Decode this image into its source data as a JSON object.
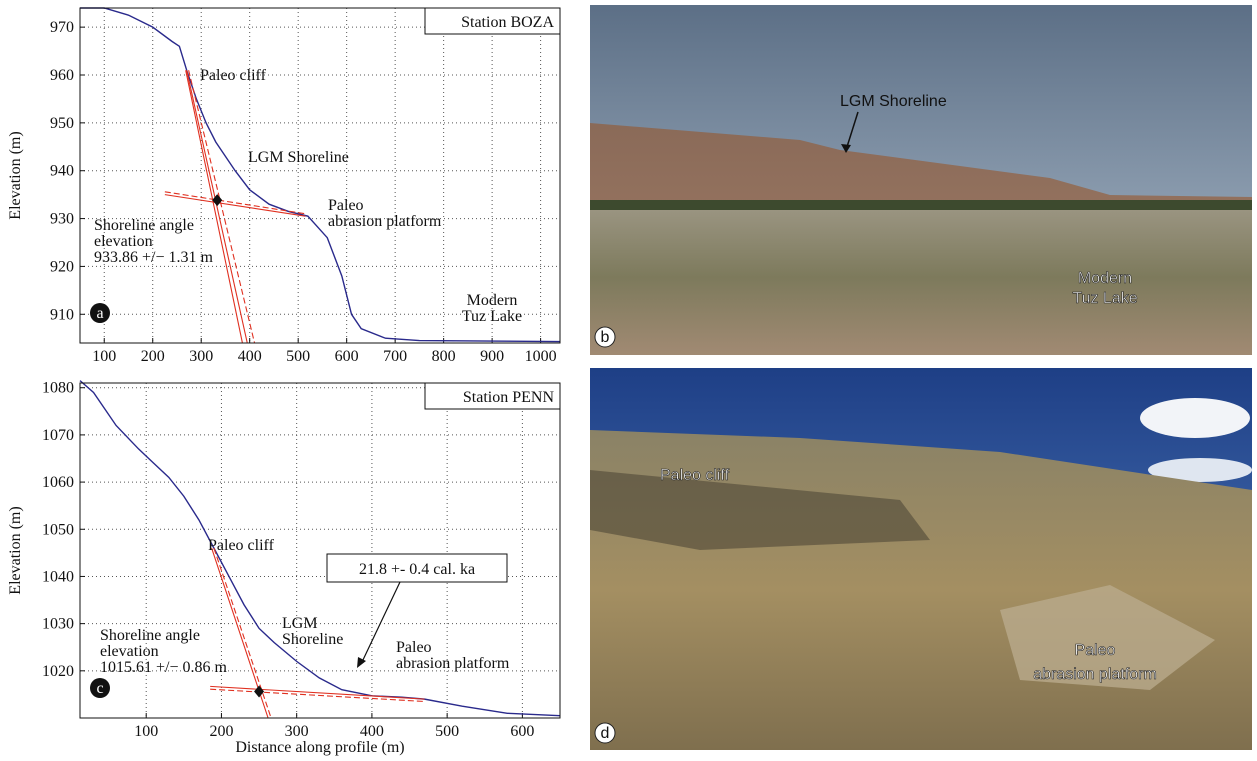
{
  "chart_data": [
    {
      "type": "line",
      "station": "Station BOZA",
      "panel": "a",
      "ylabel": "Elevation (m)",
      "xlim": [
        50,
        1040
      ],
      "ylim": [
        904,
        974
      ],
      "xticks": [
        100,
        200,
        300,
        400,
        500,
        600,
        700,
        800,
        900,
        1000
      ],
      "yticks": [
        910,
        920,
        930,
        940,
        950,
        960,
        970
      ],
      "grid": true,
      "profile": {
        "color": "#2a2a8c",
        "x": [
          50,
          100,
          150,
          200,
          240,
          255,
          270,
          290,
          310,
          330,
          370,
          400,
          440,
          480,
          520,
          560,
          590,
          610,
          630,
          680,
          750,
          1040
        ],
        "y": [
          974,
          974,
          972.5,
          970,
          967,
          966,
          961,
          955,
          950,
          946,
          940,
          936,
          933,
          931.5,
          930.5,
          926,
          918,
          910,
          907,
          905,
          904.5,
          904.3
        ]
      },
      "fit_color": "#e03020",
      "fit_lines": [
        {
          "x": [
            268,
            385
          ],
          "y": [
            961,
            904
          ],
          "dashed": false
        },
        {
          "x": [
            270,
            395
          ],
          "y": [
            961,
            904
          ],
          "dashed": false
        },
        {
          "x": [
            274,
            410
          ],
          "y": [
            961,
            904
          ],
          "dashed": true
        },
        {
          "x": [
            225,
            515
          ],
          "y": [
            935,
            930.5
          ],
          "dashed": false
        },
        {
          "x": [
            225,
            515
          ],
          "y": [
            935.6,
            931
          ],
          "dashed": true
        }
      ],
      "shoreline_point": {
        "x": 333,
        "y": 933.86
      },
      "annotations": [
        {
          "lines": [
            "Paleo cliff"
          ]
        },
        {
          "lines": [
            "LGM Shoreline"
          ]
        },
        {
          "lines": [
            "Paleo",
            "abrasion platform"
          ]
        },
        {
          "lines": [
            "Shoreline angle",
            "elevation",
            "933.86 +/− 1.31 m"
          ]
        },
        {
          "lines": [
            "Modern",
            "Tuz Lake"
          ]
        }
      ]
    },
    {
      "type": "line",
      "station": "Station PENN",
      "panel": "c",
      "ylabel": "Elevation (m)",
      "xlabel": "Distance along profile (m)",
      "xlim": [
        12,
        650
      ],
      "ylim": [
        1010,
        1081
      ],
      "xticks": [
        100,
        200,
        300,
        400,
        500,
        600
      ],
      "yticks": [
        1020,
        1030,
        1040,
        1050,
        1060,
        1070,
        1080
      ],
      "grid": true,
      "profile": {
        "color": "#2a2a8c",
        "x": [
          12,
          30,
          60,
          90,
          110,
          130,
          150,
          170,
          190,
          210,
          230,
          250,
          270,
          300,
          330,
          360,
          400,
          440,
          470,
          520,
          580,
          650
        ],
        "y": [
          1081.5,
          1079,
          1072,
          1067,
          1064,
          1061,
          1057,
          1052,
          1046,
          1040,
          1034,
          1029,
          1026,
          1022,
          1018.5,
          1016,
          1014.7,
          1014.4,
          1014,
          1012.5,
          1011,
          1010.5
        ]
      },
      "fit_color": "#e03020",
      "fit_lines": [
        {
          "x": [
            187,
            262
          ],
          "y": [
            1046,
            1010
          ],
          "dashed": false
        },
        {
          "x": [
            190,
            266
          ],
          "y": [
            1046,
            1010
          ],
          "dashed": true
        },
        {
          "x": [
            185,
            470
          ],
          "y": [
            1016.7,
            1014
          ],
          "dashed": false
        },
        {
          "x": [
            185,
            470
          ],
          "y": [
            1016.1,
            1013.5
          ],
          "dashed": true
        }
      ],
      "shoreline_point": {
        "x": 250,
        "y": 1015.61
      },
      "annotations": [
        {
          "lines": [
            "Paleo cliff"
          ]
        },
        {
          "lines": [
            "LGM",
            "Shoreline"
          ]
        },
        {
          "lines": [
            "Paleo",
            "abrasion platform"
          ]
        },
        {
          "lines": [
            "Shoreline angle",
            "elevation",
            "1015.61 +/− 0.86 m"
          ]
        }
      ],
      "age_box": "21.8 +- 0.4 cal. ka"
    }
  ],
  "photos": [
    {
      "panel": "b",
      "labels": [
        {
          "lines": [
            "LGM Shoreline"
          ]
        },
        {
          "lines": [
            "Modern",
            "Tuz Lake"
          ]
        }
      ]
    },
    {
      "panel": "d",
      "labels": [
        {
          "lines": [
            "Paleo cliff"
          ]
        },
        {
          "lines": [
            "Paleo",
            "abrasion platform"
          ]
        }
      ]
    }
  ]
}
